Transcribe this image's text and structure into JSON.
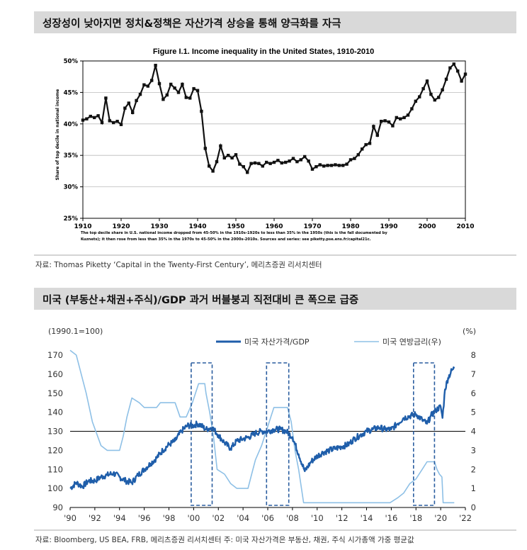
{
  "section1": {
    "heading": "성장성이 낮아지면 정치&정책은 자산가격 상승을 통해 양극화를 자극",
    "source": "자료: Thomas Piketty ‘Capital in the Twenty-First Century’, 메리츠증권 리서치센터"
  },
  "section2": {
    "heading": "미국 (부동산+채권+주식)/GDP 과거 버블붕괴 직전대비 큰 폭으로 급증",
    "source": "자료: Bloomberg, US BEA, FRB, 메리츠증권 리서치센터 주: 미국 자산가격은 부동산, 채권, 주식 시가총액 가중 평균값"
  },
  "colors": {
    "heading_bg": "#d9d9d9",
    "piketty_line": "#111111",
    "asset_line": "#1f5eaa",
    "rate_line": "#8ec0e6",
    "highlight_box": "#2a5d9f"
  },
  "chart_data": [
    {
      "type": "line",
      "title": "Figure I.1. Income inequality in the United States, 1910-2010",
      "xlabel": "",
      "ylabel": "Share of top decile in national income",
      "xlim": [
        1910,
        2010
      ],
      "ylim": [
        25,
        50
      ],
      "x_ticks": [
        "1910",
        "1920",
        "1930",
        "1940",
        "1950",
        "1960",
        "1970",
        "1980",
        "1990",
        "2000",
        "2010"
      ],
      "y_ticks": [
        "25%",
        "30%",
        "35%",
        "40%",
        "45%",
        "50%"
      ],
      "caption_lines": [
        "The top decile share in U.S. national income dropped from 45-50% in the 1910s-1920s to less than 35% in the 1950s (this is the fall documented by",
        "Kuznets); it then rose from less than 35% in the 1970s to 45-50% in the 2000s-2010s. Sources and series: see piketty.pse.ens.fr/capital21c."
      ],
      "series": [
        {
          "values": [
            [
              1910,
              40.6
            ],
            [
              1911,
              40.8
            ],
            [
              1912,
              41.2
            ],
            [
              1913,
              41.0
            ],
            [
              1914,
              41.3
            ],
            [
              1915,
              40.2
            ],
            [
              1916,
              44.1
            ],
            [
              1917,
              40.5
            ],
            [
              1918,
              40.2
            ],
            [
              1919,
              40.4
            ],
            [
              1920,
              39.9
            ],
            [
              1921,
              42.5
            ],
            [
              1922,
              43.3
            ],
            [
              1923,
              41.8
            ],
            [
              1924,
              43.7
            ],
            [
              1925,
              44.7
            ],
            [
              1926,
              46.2
            ],
            [
              1927,
              46.0
            ],
            [
              1928,
              46.9
            ],
            [
              1929,
              49.3
            ],
            [
              1930,
              46.4
            ],
            [
              1931,
              43.9
            ],
            [
              1932,
              44.6
            ],
            [
              1933,
              46.3
            ],
            [
              1934,
              45.7
            ],
            [
              1935,
              45.0
            ],
            [
              1936,
              46.3
            ],
            [
              1937,
              44.2
            ],
            [
              1938,
              44.1
            ],
            [
              1939,
              45.6
            ],
            [
              1940,
              45.3
            ],
            [
              1941,
              42.0
            ],
            [
              1942,
              36.1
            ],
            [
              1943,
              33.3
            ],
            [
              1944,
              32.5
            ],
            [
              1945,
              34.0
            ],
            [
              1946,
              36.5
            ],
            [
              1947,
              34.6
            ],
            [
              1948,
              35.0
            ],
            [
              1949,
              34.6
            ],
            [
              1950,
              35.1
            ],
            [
              1951,
              33.6
            ],
            [
              1952,
              33.2
            ],
            [
              1953,
              32.3
            ],
            [
              1954,
              33.7
            ],
            [
              1955,
              33.8
            ],
            [
              1956,
              33.7
            ],
            [
              1957,
              33.3
            ],
            [
              1958,
              33.9
            ],
            [
              1959,
              33.7
            ],
            [
              1960,
              33.9
            ],
            [
              1961,
              34.2
            ],
            [
              1962,
              33.8
            ],
            [
              1963,
              33.9
            ],
            [
              1964,
              34.1
            ],
            [
              1965,
              34.5
            ],
            [
              1966,
              34.0
            ],
            [
              1967,
              34.3
            ],
            [
              1968,
              34.8
            ],
            [
              1969,
              34.1
            ],
            [
              1970,
              32.8
            ],
            [
              1971,
              33.2
            ],
            [
              1972,
              33.5
            ],
            [
              1973,
              33.3
            ],
            [
              1974,
              33.4
            ],
            [
              1975,
              33.4
            ],
            [
              1976,
              33.5
            ],
            [
              1977,
              33.4
            ],
            [
              1978,
              33.4
            ],
            [
              1979,
              33.6
            ],
            [
              1980,
              34.3
            ],
            [
              1981,
              34.5
            ],
            [
              1982,
              35.1
            ],
            [
              1983,
              36.0
            ],
            [
              1984,
              36.7
            ],
            [
              1985,
              36.9
            ],
            [
              1986,
              39.6
            ],
            [
              1987,
              38.2
            ],
            [
              1988,
              40.4
            ],
            [
              1989,
              40.5
            ],
            [
              1990,
              40.3
            ],
            [
              1991,
              39.7
            ],
            [
              1992,
              41.0
            ],
            [
              1993,
              40.8
            ],
            [
              1994,
              41.0
            ],
            [
              1995,
              41.4
            ],
            [
              1996,
              42.4
            ],
            [
              1997,
              43.6
            ],
            [
              1998,
              44.3
            ],
            [
              1999,
              45.6
            ],
            [
              2000,
              46.8
            ],
            [
              2001,
              44.7
            ],
            [
              2002,
              43.8
            ],
            [
              2003,
              44.2
            ],
            [
              2004,
              45.4
            ],
            [
              2005,
              47.1
            ],
            [
              2006,
              48.9
            ],
            [
              2007,
              49.5
            ],
            [
              2008,
              48.4
            ],
            [
              2009,
              46.8
            ],
            [
              2010,
              47.9
            ]
          ]
        }
      ]
    },
    {
      "type": "line",
      "title": "",
      "left_axis_label": "(1990.1=100)",
      "right_axis_label": "(%)",
      "x_ticks": [
        "'90",
        "'92",
        "'94",
        "'96",
        "'98",
        "'00",
        "'02",
        "'04",
        "'06",
        "'08",
        "'10",
        "'12",
        "'14",
        "'16",
        "'18",
        "'20",
        "'22"
      ],
      "xlim": [
        1990,
        2022
      ],
      "ylim_left": [
        90,
        170
      ],
      "ylim_right": [
        0,
        8
      ],
      "y_ticks_left": [
        "90",
        "100",
        "110",
        "120",
        "130",
        "140",
        "150",
        "160",
        "170"
      ],
      "y_ticks_right": [
        "0",
        "1",
        "2",
        "3",
        "4",
        "5",
        "6",
        "7",
        "8"
      ],
      "reference_line_left": 130,
      "highlight_periods": [
        [
          1999.8,
          2001.5
        ],
        [
          2005.9,
          2007.7
        ],
        [
          2017.8,
          2019.5
        ]
      ],
      "legend_position": "top-center",
      "series": [
        {
          "name": "미국 자산가격/GDP",
          "axis": "left",
          "values": [
            [
              1990.0,
              100
            ],
            [
              1990.5,
              103
            ],
            [
              1991.0,
              101
            ],
            [
              1991.5,
              104
            ],
            [
              1992.0,
              104
            ],
            [
              1992.5,
              106
            ],
            [
              1993.0,
              107
            ],
            [
              1993.5,
              108
            ],
            [
              1994.0,
              106
            ],
            [
              1994.5,
              104
            ],
            [
              1995.0,
              103
            ],
            [
              1995.5,
              107
            ],
            [
              1996.0,
              110
            ],
            [
              1996.5,
              113
            ],
            [
              1997.0,
              116
            ],
            [
              1997.5,
              120
            ],
            [
              1998.0,
              123
            ],
            [
              1998.5,
              125
            ],
            [
              1999.0,
              130
            ],
            [
              1999.5,
              133
            ],
            [
              2000.0,
              133
            ],
            [
              2000.3,
              134
            ],
            [
              2000.6,
              133
            ],
            [
              2001.0,
              131
            ],
            [
              2001.5,
              132
            ],
            [
              2002.0,
              128
            ],
            [
              2002.5,
              124
            ],
            [
              2003.0,
              121
            ],
            [
              2003.5,
              125
            ],
            [
              2004.0,
              126
            ],
            [
              2004.5,
              127
            ],
            [
              2005.0,
              129
            ],
            [
              2005.5,
              130
            ],
            [
              2006.0,
              130
            ],
            [
              2006.5,
              131
            ],
            [
              2007.0,
              131
            ],
            [
              2007.5,
              130
            ],
            [
              2008.0,
              127
            ],
            [
              2008.5,
              118
            ],
            [
              2009.0,
              109
            ],
            [
              2009.5,
              114
            ],
            [
              2010.0,
              117
            ],
            [
              2010.5,
              119
            ],
            [
              2011.0,
              120
            ],
            [
              2011.5,
              121
            ],
            [
              2012.0,
              122
            ],
            [
              2012.5,
              123
            ],
            [
              2013.0,
              126
            ],
            [
              2013.5,
              128
            ],
            [
              2014.0,
              130
            ],
            [
              2014.5,
              131
            ],
            [
              2015.0,
              132
            ],
            [
              2015.5,
              131
            ],
            [
              2016.0,
              131
            ],
            [
              2016.5,
              134
            ],
            [
              2017.0,
              137
            ],
            [
              2017.5,
              138
            ],
            [
              2018.0,
              139
            ],
            [
              2018.5,
              136
            ],
            [
              2018.9,
              134
            ],
            [
              2019.2,
              138
            ],
            [
              2019.6,
              141
            ],
            [
              2020.0,
              143
            ],
            [
              2020.15,
              137
            ],
            [
              2020.35,
              152
            ],
            [
              2020.6,
              158
            ],
            [
              2020.9,
              162
            ],
            [
              2021.1,
              163
            ]
          ]
        },
        {
          "name": "미국 연방금리(우)",
          "axis": "right",
          "values": [
            [
              1990.0,
              8.25
            ],
            [
              1990.5,
              8.0
            ],
            [
              1990.9,
              7.0
            ],
            [
              1991.3,
              6.0
            ],
            [
              1991.8,
              4.5
            ],
            [
              1992.5,
              3.25
            ],
            [
              1993.0,
              3.0
            ],
            [
              1994.0,
              3.0
            ],
            [
              1994.3,
              3.75
            ],
            [
              1994.6,
              4.75
            ],
            [
              1995.0,
              5.75
            ],
            [
              1995.6,
              5.5
            ],
            [
              1996.0,
              5.25
            ],
            [
              1997.0,
              5.25
            ],
            [
              1997.3,
              5.5
            ],
            [
              1998.5,
              5.5
            ],
            [
              1998.9,
              4.75
            ],
            [
              1999.4,
              4.75
            ],
            [
              1999.9,
              5.5
            ],
            [
              2000.4,
              6.5
            ],
            [
              2000.9,
              6.5
            ],
            [
              2001.0,
              6.0
            ],
            [
              2001.3,
              5.0
            ],
            [
              2001.6,
              3.75
            ],
            [
              2001.9,
              2.0
            ],
            [
              2002.5,
              1.75
            ],
            [
              2003.0,
              1.25
            ],
            [
              2003.5,
              1.0
            ],
            [
              2004.4,
              1.0
            ],
            [
              2004.7,
              1.75
            ],
            [
              2005.0,
              2.5
            ],
            [
              2005.5,
              3.25
            ],
            [
              2006.0,
              4.25
            ],
            [
              2006.5,
              5.25
            ],
            [
              2007.6,
              5.25
            ],
            [
              2007.9,
              4.5
            ],
            [
              2008.2,
              3.0
            ],
            [
              2008.5,
              2.0
            ],
            [
              2008.9,
              0.25
            ],
            [
              2015.9,
              0.25
            ],
            [
              2016.5,
              0.5
            ],
            [
              2017.0,
              0.75
            ],
            [
              2017.5,
              1.25
            ],
            [
              2018.0,
              1.5
            ],
            [
              2018.5,
              2.0
            ],
            [
              2018.9,
              2.4
            ],
            [
              2019.5,
              2.4
            ],
            [
              2019.7,
              2.0
            ],
            [
              2019.9,
              1.75
            ],
            [
              2020.1,
              1.6
            ],
            [
              2020.2,
              0.25
            ],
            [
              2021.1,
              0.25
            ]
          ]
        }
      ]
    }
  ]
}
